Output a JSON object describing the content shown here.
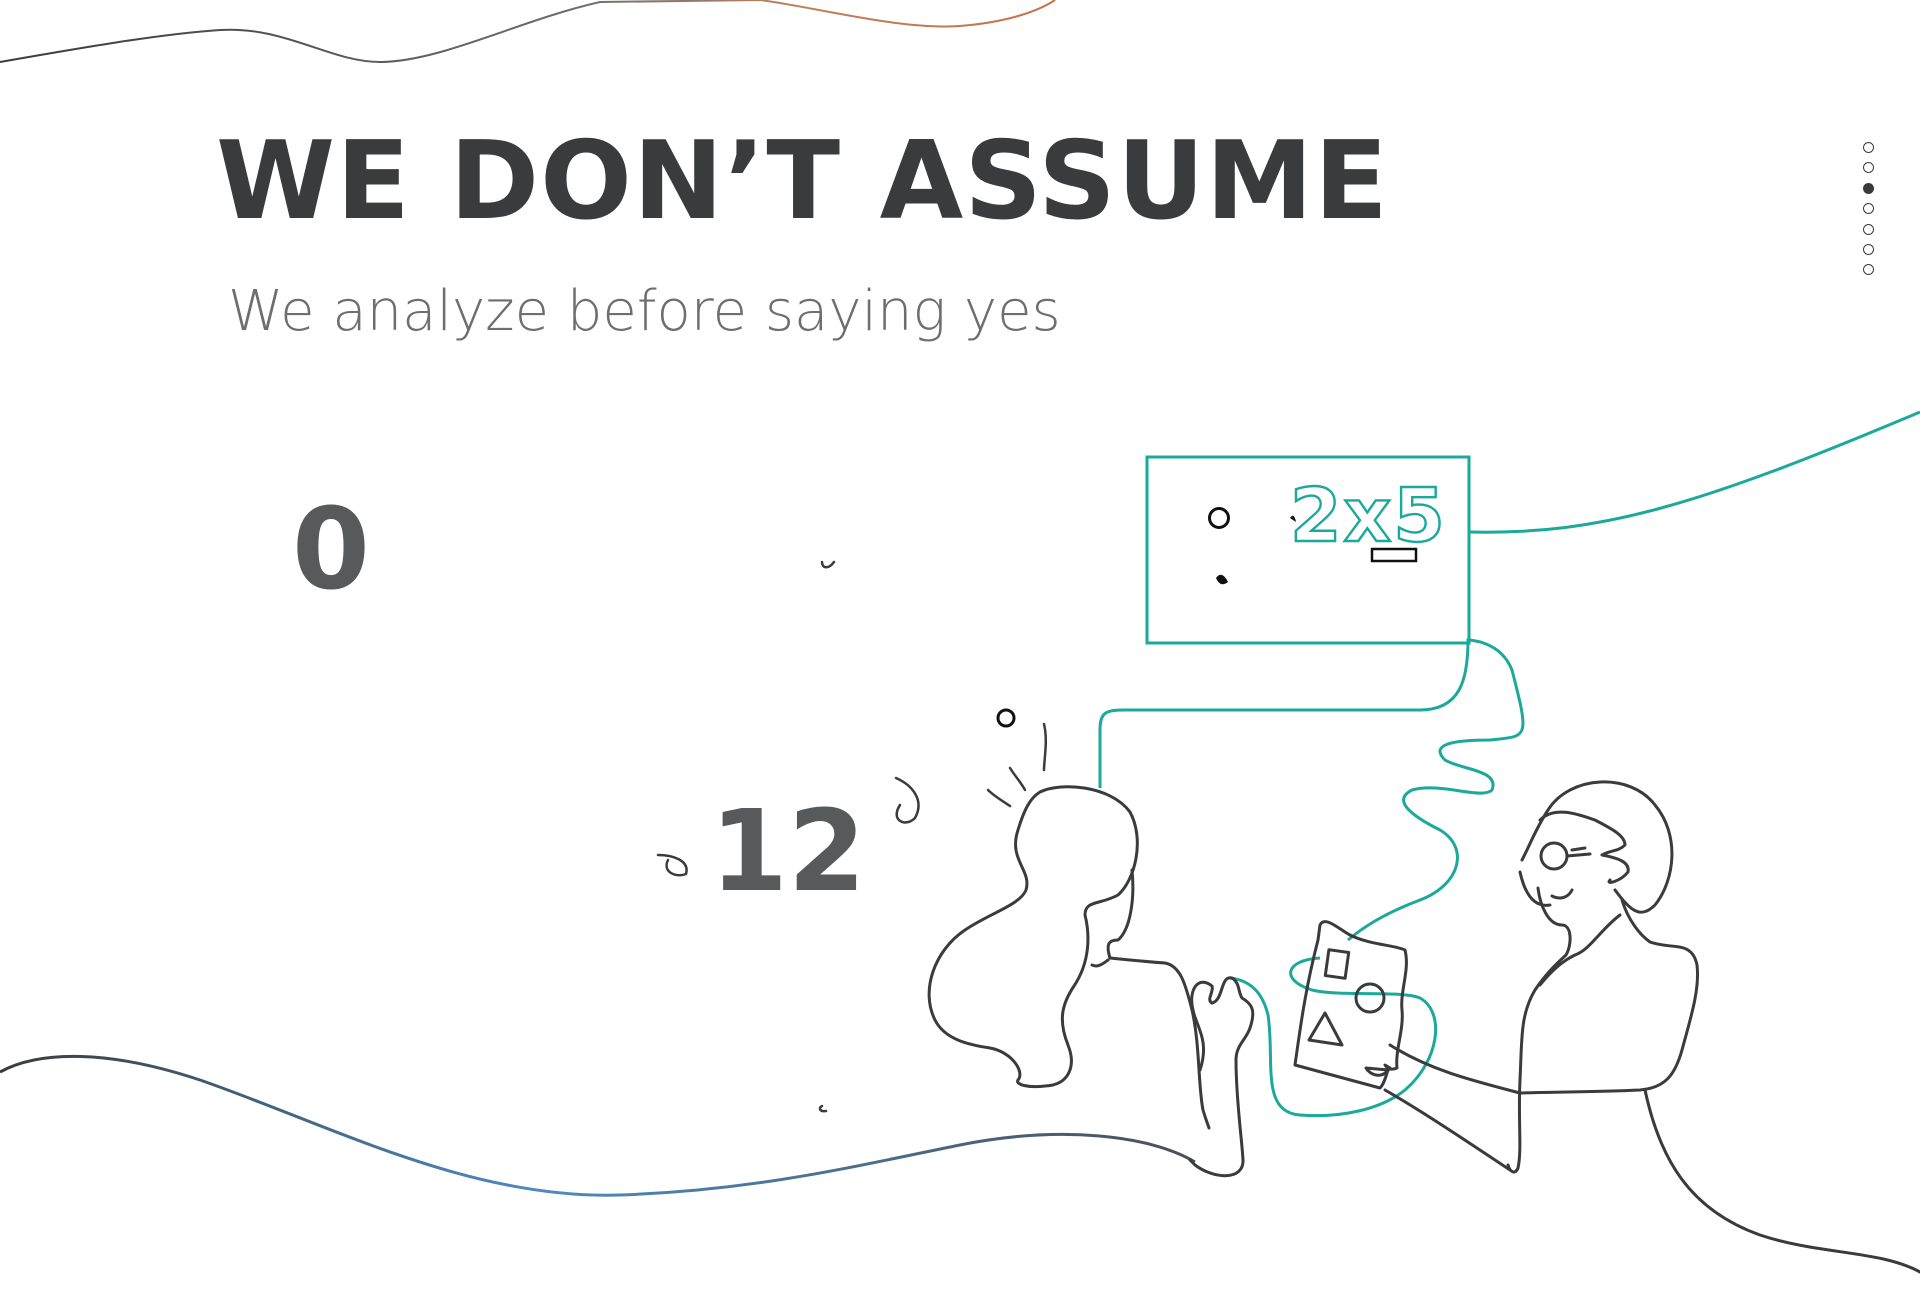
{
  "slide": {
    "title": "WE DON’T ASSUME",
    "subtitle": "We analyze before saying yes"
  },
  "counters": [
    {
      "value": "0"
    },
    {
      "value": "12"
    }
  ],
  "pagination": {
    "total": 7,
    "active_index": 2
  },
  "illustration": {
    "board_text": "2x5"
  },
  "colors": {
    "title": "#3a3b3d",
    "subtitle": "#6e6e70",
    "counter": "#58595b",
    "accent_teal": "#1aa99a",
    "line_dark": "#3a3b3d"
  }
}
